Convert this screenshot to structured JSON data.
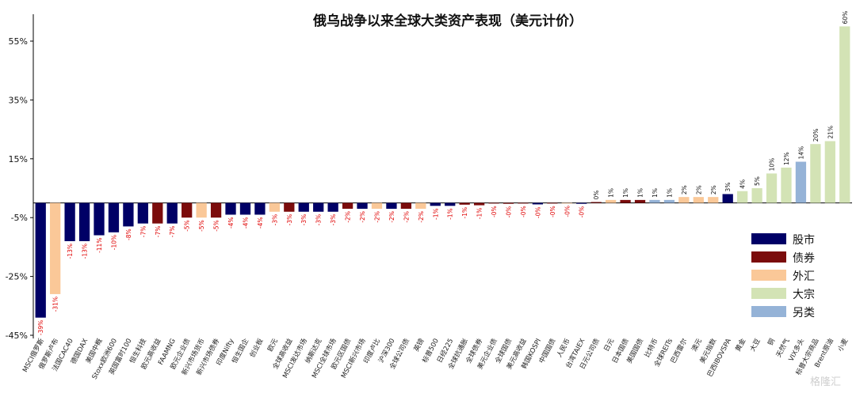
{
  "colors": {
    "股市": "#000066",
    "债券": "#7b0c0c",
    "外汇": "#fac898",
    "大宗": "#d3e3b5",
    "另类": "#95b3d7",
    "neg_label": "#e00000",
    "pos_label": "#111111",
    "axis": "#000000"
  },
  "watermark": "格隆汇",
  "chart_data": {
    "type": "bar",
    "title": "俄乌战争以来全球大类资产表现（美元计价）",
    "xlabel": "",
    "ylabel": "",
    "ylim": [
      -45,
      60
    ],
    "yticks": [
      -45,
      -25,
      -5,
      15,
      35,
      55
    ],
    "ytick_labels": [
      "-45%",
      "-25%",
      "-5%",
      "15%",
      "35%",
      "55%"
    ],
    "grid": false,
    "legend_position": "right",
    "legend": [
      "股市",
      "债券",
      "外汇",
      "大宗",
      "另类"
    ],
    "categories": [
      "MSCI俄罗斯",
      "俄罗斯卢布",
      "法国CAC40",
      "德国DAX",
      "美国中概",
      "Stoxx欧洲600",
      "英国富时100",
      "恒生科技",
      "欧元高收益",
      "FAAMNG",
      "欧元企业债",
      "新兴市场货币",
      "新兴市场债券",
      "印度Nifty",
      "恒生国企",
      "创业板",
      "欧元",
      "全球高收益",
      "MSCI发达市场",
      "纳斯达克",
      "MSCI全球市场",
      "欧元区国债",
      "MSCI新兴市场",
      "印度卢比",
      "沪深300",
      "全球公司债",
      "英镑",
      "标普500",
      "日经225",
      "全球抗通胀",
      "全球债券",
      "美元企业债",
      "全球国债",
      "美元高收益",
      "韩国KOSPI",
      "中国国债",
      "人民币",
      "台湾TAIEX",
      "日元公司债",
      "日元",
      "日本国债",
      "美国国债",
      "比特币",
      "全球REITs",
      "巴西雷尔",
      "澳元",
      "美元指数",
      "巴西IBOVSPA",
      "黄金",
      "大豆",
      "铜",
      "天然气",
      "VIX多头",
      "标普大宗商品",
      "Brent原油",
      "小麦"
    ],
    "series": [
      {
        "name": "股市",
        "values": [
          -39,
          null,
          -13,
          -13,
          -11,
          -10,
          -8,
          -7,
          null,
          -7,
          null,
          null,
          null,
          -4,
          -4,
          -4,
          null,
          null,
          -3,
          -3,
          -3,
          null,
          -2,
          null,
          -2,
          null,
          null,
          -1,
          -1,
          null,
          null,
          null,
          null,
          null,
          -0.5,
          null,
          null,
          -0.3,
          null,
          null,
          null,
          null,
          null,
          null,
          null,
          null,
          null,
          3,
          null,
          null,
          null,
          null,
          null,
          null,
          null,
          null
        ]
      },
      {
        "name": "债券",
        "values": [
          null,
          null,
          null,
          null,
          null,
          null,
          null,
          null,
          -7,
          null,
          -5,
          null,
          -5,
          null,
          null,
          null,
          null,
          -3,
          null,
          null,
          null,
          -2,
          null,
          null,
          null,
          -2,
          null,
          null,
          null,
          -0.6,
          -0.8,
          -0.2,
          -0.3,
          -0.2,
          null,
          -0.2,
          null,
          null,
          0.3,
          null,
          1,
          1,
          null,
          null,
          null,
          null,
          null,
          null,
          null,
          null,
          null,
          null,
          null,
          null,
          null,
          null
        ]
      },
      {
        "name": "外汇",
        "values": [
          null,
          -31,
          null,
          null,
          null,
          null,
          null,
          null,
          null,
          null,
          null,
          -5,
          null,
          null,
          null,
          null,
          -3,
          null,
          null,
          null,
          null,
          null,
          null,
          -2,
          null,
          null,
          -2,
          null,
          null,
          null,
          null,
          null,
          null,
          null,
          null,
          null,
          -0.1,
          null,
          null,
          1,
          null,
          null,
          null,
          null,
          2,
          2,
          2,
          null,
          null,
          null,
          null,
          null,
          null,
          null,
          null,
          null
        ]
      },
      {
        "name": "大宗",
        "values": [
          null,
          null,
          null,
          null,
          null,
          null,
          null,
          null,
          null,
          null,
          null,
          null,
          null,
          null,
          null,
          null,
          null,
          null,
          null,
          null,
          null,
          null,
          null,
          null,
          null,
          null,
          null,
          null,
          null,
          null,
          null,
          null,
          null,
          null,
          null,
          null,
          null,
          null,
          null,
          null,
          null,
          null,
          null,
          null,
          null,
          null,
          null,
          null,
          4,
          5,
          10,
          12,
          null,
          20,
          21,
          60
        ]
      },
      {
        "name": "另类",
        "values": [
          null,
          null,
          null,
          null,
          null,
          null,
          null,
          null,
          null,
          null,
          null,
          null,
          null,
          null,
          null,
          null,
          null,
          null,
          null,
          null,
          null,
          null,
          null,
          null,
          null,
          null,
          null,
          null,
          null,
          null,
          null,
          null,
          null,
          null,
          null,
          null,
          null,
          null,
          null,
          null,
          null,
          null,
          1,
          1,
          null,
          null,
          null,
          null,
          null,
          null,
          null,
          null,
          14,
          null,
          null,
          null
        ]
      }
    ],
    "data_labels": [
      "-39%",
      "-31%",
      "-13%",
      "-13%",
      "-11%",
      "-10%",
      "-8%",
      "-7%",
      "-7%",
      "-7%",
      "-5%",
      "-5%",
      "-5%",
      "-4%",
      "-4%",
      "-4%",
      "-3%",
      "-3%",
      "-3%",
      "-3%",
      "-3%",
      "-2%",
      "-2%",
      "-2%",
      "-2%",
      "-2%",
      "-2%",
      "-1%",
      "-1%",
      "-1%",
      "-1%",
      "-0%",
      "-0%",
      "-0%",
      "-0%",
      "-0%",
      "-0%",
      "-0%",
      "0%",
      "1%",
      "1%",
      "1%",
      "1%",
      "1%",
      "2%",
      "2%",
      "2%",
      "3%",
      "4%",
      "5%",
      "10%",
      "12%",
      "14%",
      "20%",
      "21%",
      "60%"
    ]
  }
}
